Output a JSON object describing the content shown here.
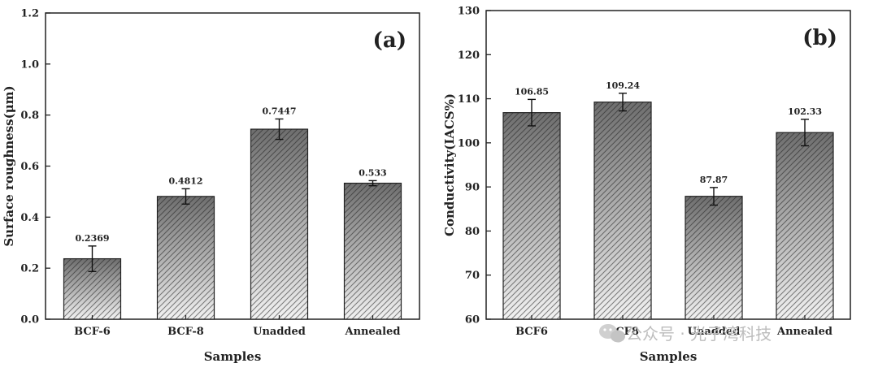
{
  "watermark": {
    "text": "公众号 · 光子湾科技",
    "icon": "wechat-icon"
  },
  "chart_data": [
    {
      "type": "bar",
      "panel_label": "(a)",
      "categories": [
        "BCF-6",
        "BCF-8",
        "Unadded",
        "Annealed"
      ],
      "values": [
        0.2369,
        0.4812,
        0.7447,
        0.533
      ],
      "value_labels": [
        "0.2369",
        "0.4812",
        "0.7447",
        "0.533"
      ],
      "errors": [
        0.05,
        0.03,
        0.04,
        0.01
      ],
      "xlabel": "Samples",
      "ylabel": "Surface roughness(μm)",
      "ylim": [
        0,
        1.2
      ],
      "yticks": [
        0.0,
        0.2,
        0.4,
        0.6,
        0.8,
        1.0,
        1.2
      ],
      "ytick_labels": [
        "0.0",
        "0.2",
        "0.4",
        "0.6",
        "0.8",
        "1.0",
        "1.2"
      ],
      "grid": false,
      "bar_fill": "gradient hatched dark-to-light gray"
    },
    {
      "type": "bar",
      "panel_label": "(b)",
      "categories": [
        "BCF6",
        "BCF8",
        "Unadded",
        "Annealed"
      ],
      "values": [
        106.85,
        109.24,
        87.87,
        102.33
      ],
      "value_labels": [
        "106.85",
        "109.24",
        "87.87",
        "102.33"
      ],
      "errors": [
        3.0,
        2.0,
        2.0,
        3.0
      ],
      "xlabel": "Samples",
      "ylabel": "Conductivity(IACS%)",
      "ylim": [
        60,
        130
      ],
      "yticks": [
        60,
        70,
        80,
        90,
        100,
        110,
        120,
        130
      ],
      "ytick_labels": [
        "60",
        "70",
        "80",
        "90",
        "100",
        "110",
        "120",
        "130"
      ],
      "grid": false,
      "bar_fill": "gradient hatched dark-to-light gray"
    }
  ]
}
